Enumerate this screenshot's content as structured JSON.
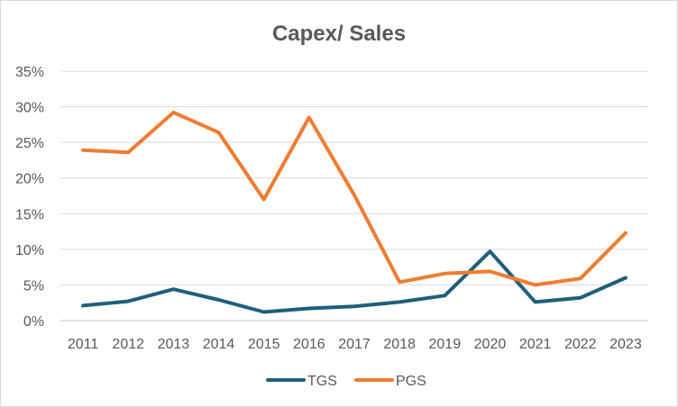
{
  "chart_data": {
    "type": "line",
    "title": "Capex/ Sales",
    "xlabel": "",
    "ylabel": "",
    "categories": [
      "2011",
      "2012",
      "2013",
      "2014",
      "2015",
      "2016",
      "2017",
      "2018",
      "2019",
      "2020",
      "2021",
      "2022",
      "2023"
    ],
    "y_ticks": [
      "0%",
      "5%",
      "10%",
      "15%",
      "20%",
      "25%",
      "30%",
      "35%"
    ],
    "ylim": [
      0,
      35
    ],
    "grid": "horizontal",
    "legend": "bottom",
    "series": [
      {
        "name": "TGS",
        "color": "#1f5f7a",
        "values": [
          2.1,
          2.7,
          4.4,
          2.9,
          1.2,
          1.7,
          2.0,
          2.6,
          3.5,
          9.7,
          2.6,
          3.2,
          6.0
        ]
      },
      {
        "name": "PGS",
        "color": "#ee7d31",
        "values": [
          23.9,
          23.6,
          29.2,
          26.4,
          17.0,
          28.5,
          17.6,
          5.4,
          6.6,
          6.9,
          5.0,
          5.9,
          12.3
        ]
      }
    ]
  }
}
